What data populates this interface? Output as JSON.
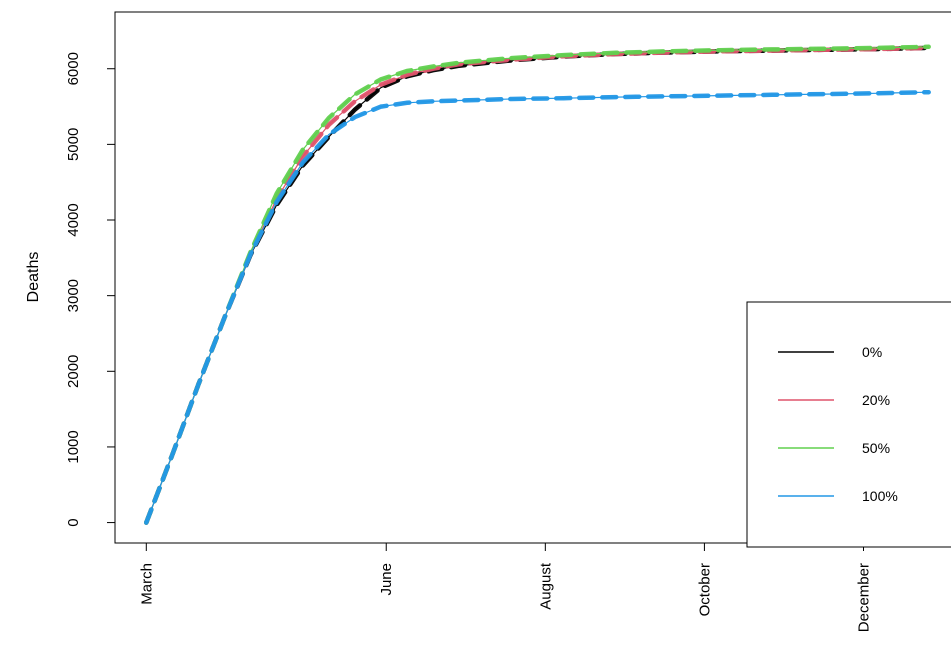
{
  "chart_data": {
    "type": "line",
    "title": "",
    "xlabel": "",
    "ylabel": "Deaths",
    "x_ticks": [
      {
        "day": 0,
        "label": "March"
      },
      {
        "day": 92,
        "label": "June"
      },
      {
        "day": 153,
        "label": "August"
      },
      {
        "day": 214,
        "label": "October"
      },
      {
        "day": 275,
        "label": "December"
      }
    ],
    "xlim": [
      -12,
      312
    ],
    "ylim": [
      -270,
      6750
    ],
    "y_ticks": [
      0,
      1000,
      2000,
      3000,
      4000,
      5000,
      6000
    ],
    "grid": false,
    "legend_position": "bottom-right",
    "series": [
      {
        "name": "0%",
        "color": "#000000",
        "points": [
          [
            0,
            0
          ],
          [
            10,
            900
          ],
          [
            20,
            1830
          ],
          [
            30,
            2710
          ],
          [
            40,
            3540
          ],
          [
            50,
            4200
          ],
          [
            60,
            4720
          ],
          [
            70,
            5100
          ],
          [
            80,
            5460
          ],
          [
            90,
            5750
          ],
          [
            100,
            5900
          ],
          [
            110,
            5980
          ],
          [
            120,
            6040
          ],
          [
            140,
            6110
          ],
          [
            160,
            6160
          ],
          [
            180,
            6195
          ],
          [
            200,
            6215
          ],
          [
            220,
            6230
          ],
          [
            240,
            6240
          ],
          [
            260,
            6250
          ],
          [
            280,
            6260
          ],
          [
            300,
            6275
          ]
        ]
      },
      {
        "name": "20%",
        "color": "#DF536B",
        "points": [
          [
            0,
            0
          ],
          [
            10,
            900
          ],
          [
            20,
            1830
          ],
          [
            30,
            2710
          ],
          [
            40,
            3560
          ],
          [
            50,
            4280
          ],
          [
            60,
            4840
          ],
          [
            70,
            5260
          ],
          [
            80,
            5570
          ],
          [
            90,
            5790
          ],
          [
            100,
            5920
          ],
          [
            110,
            6000
          ],
          [
            120,
            6060
          ],
          [
            140,
            6120
          ],
          [
            160,
            6165
          ],
          [
            180,
            6195
          ],
          [
            200,
            6215
          ],
          [
            220,
            6230
          ],
          [
            240,
            6240
          ],
          [
            260,
            6250
          ],
          [
            280,
            6260
          ],
          [
            300,
            6275
          ]
        ]
      },
      {
        "name": "50%",
        "color": "#61D04F",
        "points": [
          [
            0,
            0
          ],
          [
            10,
            900
          ],
          [
            20,
            1830
          ],
          [
            30,
            2710
          ],
          [
            40,
            3580
          ],
          [
            50,
            4350
          ],
          [
            60,
            4930
          ],
          [
            70,
            5350
          ],
          [
            80,
            5660
          ],
          [
            90,
            5860
          ],
          [
            100,
            5970
          ],
          [
            110,
            6030
          ],
          [
            120,
            6080
          ],
          [
            140,
            6140
          ],
          [
            160,
            6180
          ],
          [
            180,
            6210
          ],
          [
            200,
            6230
          ],
          [
            220,
            6245
          ],
          [
            240,
            6255
          ],
          [
            260,
            6265
          ],
          [
            280,
            6275
          ],
          [
            300,
            6290
          ]
        ]
      },
      {
        "name": "100%",
        "color": "#2297E6",
        "points": [
          [
            0,
            0
          ],
          [
            10,
            900
          ],
          [
            20,
            1830
          ],
          [
            30,
            2710
          ],
          [
            40,
            3550
          ],
          [
            50,
            4240
          ],
          [
            60,
            4760
          ],
          [
            70,
            5130
          ],
          [
            80,
            5360
          ],
          [
            90,
            5500
          ],
          [
            100,
            5550
          ],
          [
            110,
            5570
          ],
          [
            120,
            5580
          ],
          [
            140,
            5600
          ],
          [
            160,
            5610
          ],
          [
            180,
            5625
          ],
          [
            200,
            5635
          ],
          [
            220,
            5645
          ],
          [
            240,
            5655
          ],
          [
            260,
            5665
          ],
          [
            280,
            5675
          ],
          [
            300,
            5690
          ]
        ]
      }
    ]
  }
}
